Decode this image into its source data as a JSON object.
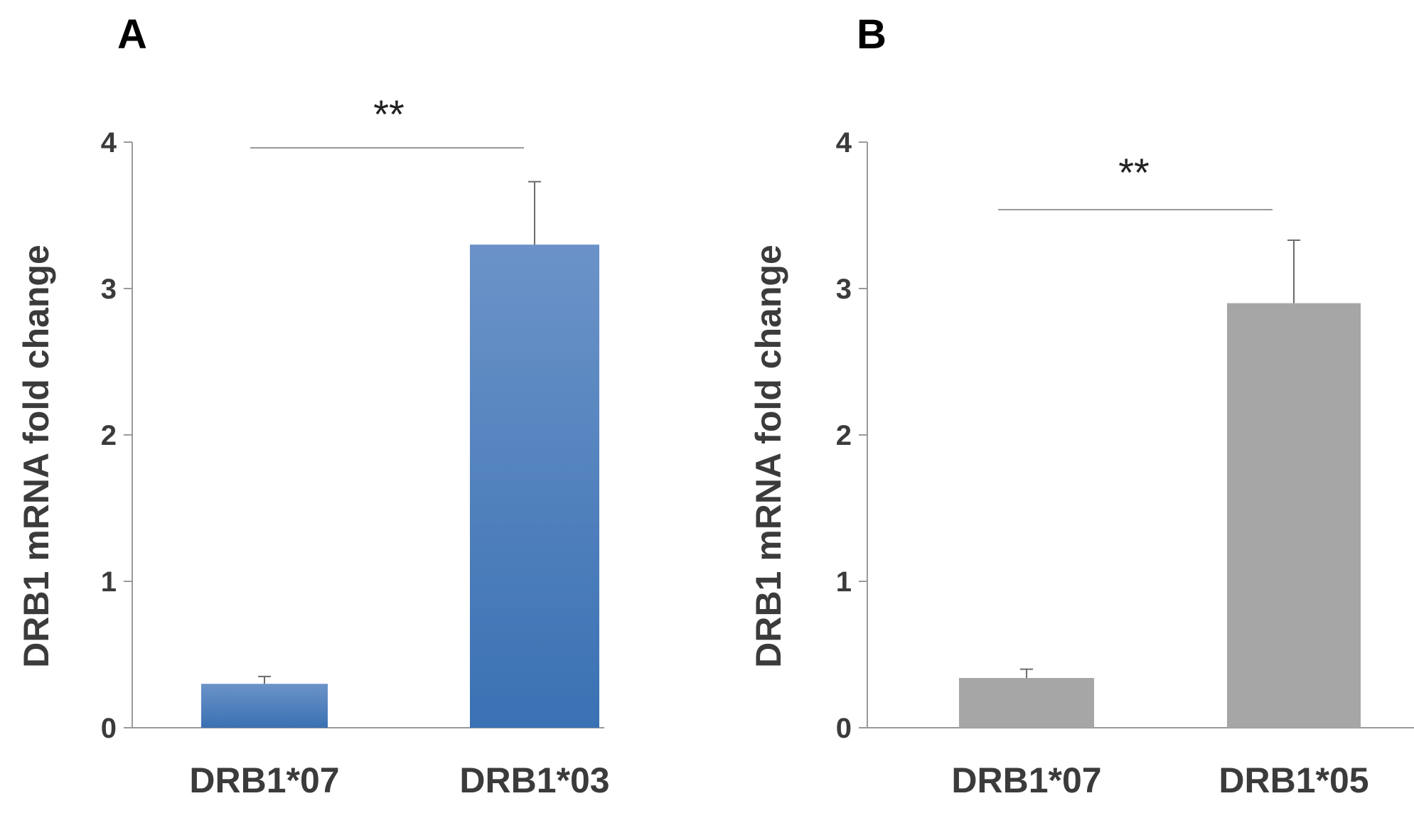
{
  "chart_data": [
    {
      "type": "bar",
      "panel": "A",
      "categories": [
        "DRB1*07",
        "DRB1*03"
      ],
      "values": [
        0.3,
        3.3
      ],
      "error_upper": [
        0.35,
        3.73
      ],
      "ylabel": "DRB1 mRNA fold change",
      "xlabel": "",
      "ylim": [
        0,
        4
      ],
      "yticks": [
        "0",
        "1",
        "2",
        "3",
        "4"
      ],
      "significance": "**",
      "bar_color_top": "#6b93c8",
      "bar_color_bottom": "#3a71b3"
    },
    {
      "type": "bar",
      "panel": "B",
      "categories": [
        "DRB1*07",
        "DRB1*05"
      ],
      "values": [
        0.34,
        2.9
      ],
      "error_upper": [
        0.4,
        3.33
      ],
      "ylabel": "DRB1 mRNA fold change",
      "xlabel": "",
      "ylim": [
        0,
        4
      ],
      "yticks": [
        "0",
        "1",
        "2",
        "3",
        "4"
      ],
      "significance": "**",
      "bar_color_top": "#a6a6a6",
      "bar_color_bottom": "#a6a6a6"
    }
  ]
}
